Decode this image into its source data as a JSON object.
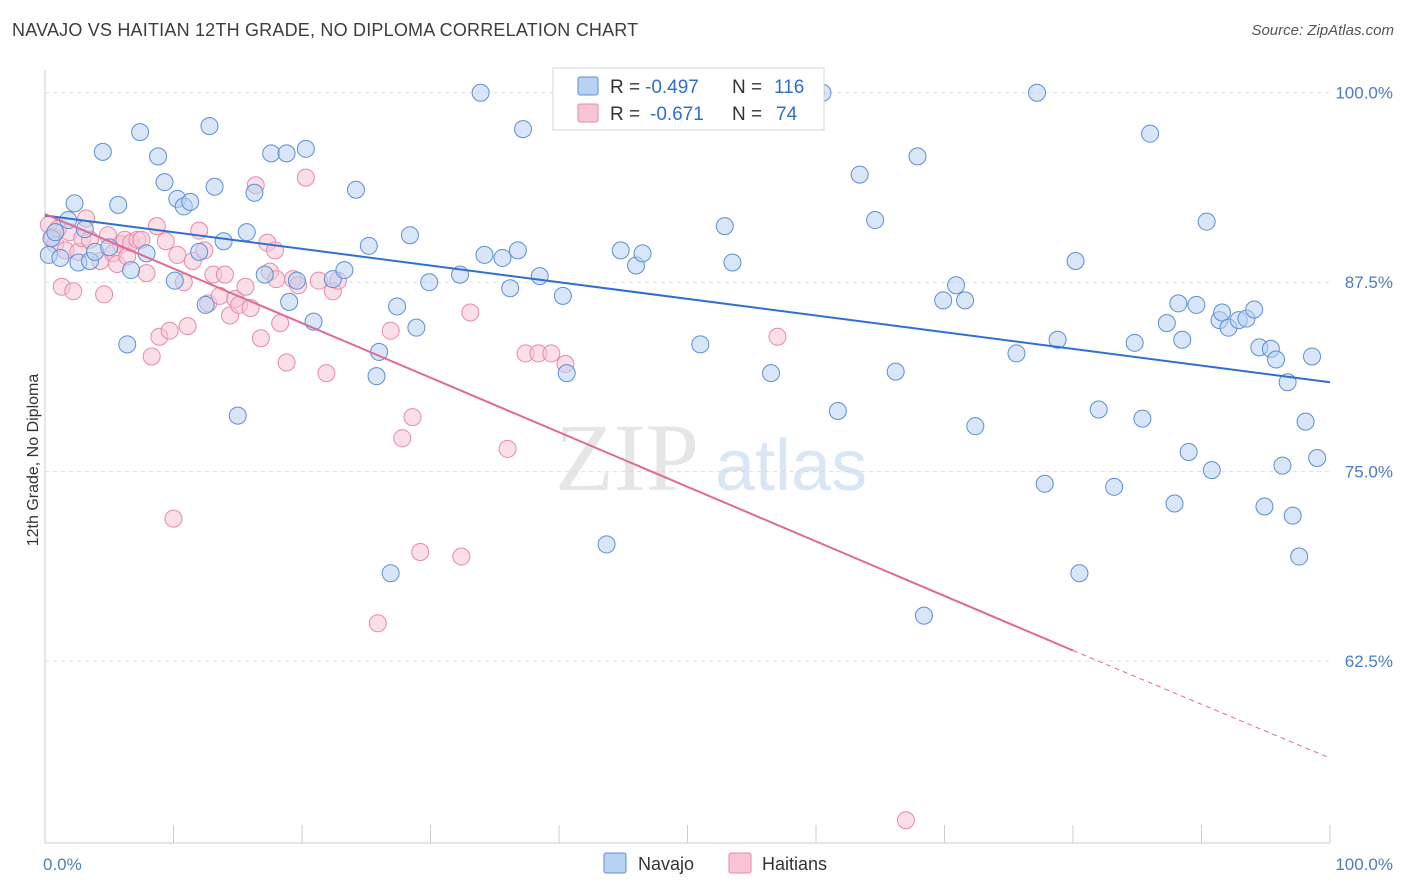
{
  "title": "NAVAJO VS HAITIAN 12TH GRADE, NO DIPLOMA CORRELATION CHART",
  "source": "Source: ZipAtlas.com",
  "watermark": {
    "zip": "ZIP",
    "atlas": "atlas"
  },
  "legend": {
    "navajo": {
      "r_label": "R =",
      "r_value": "-0.497",
      "n_label": "N =",
      "n_value": "116"
    },
    "haitian": {
      "r_label": "R =",
      "r_value": "-0.671",
      "n_label": "N =",
      "n_value": "74"
    }
  },
  "bottom_legend": {
    "navajo": "Navajo",
    "haitian": "Haitians"
  },
  "colors": {
    "navajo_fill": "#b8d2f2",
    "navajo_stroke": "#5b8fd6",
    "navajo_line": "#2f6fd0",
    "haitian_fill": "#f7c5d6",
    "haitian_stroke": "#e889a8",
    "haitian_line": "#e06a92",
    "tick_label": "#4a7cc7",
    "grid": "#dddddd"
  },
  "chart_data": {
    "type": "scatter",
    "ylabel": "12th Grade, No Diploma",
    "x_tick_labels": [
      "0.0%",
      "100.0%"
    ],
    "y_ticks": [
      {
        "value": 100.0,
        "label": "100.0%"
      },
      {
        "value": 87.5,
        "label": "87.5%"
      },
      {
        "value": 75.0,
        "label": "75.0%"
      },
      {
        "value": 62.5,
        "label": "62.5%"
      }
    ],
    "xlim": [
      0,
      100
    ],
    "ylim": [
      50.5,
      101.5
    ],
    "series": [
      {
        "name": "Navajo",
        "trend": {
          "x": [
            0,
            100
          ],
          "y": [
            91.9,
            80.9
          ]
        },
        "points": [
          [
            0.3,
            89.3
          ],
          [
            0.5,
            90.4
          ],
          [
            0.8,
            90.8
          ],
          [
            1.2,
            89.1
          ],
          [
            1.8,
            91.6
          ],
          [
            2.3,
            92.7
          ],
          [
            2.6,
            88.8
          ],
          [
            3.1,
            91.0
          ],
          [
            3.5,
            88.9
          ],
          [
            3.9,
            89.5
          ],
          [
            4.5,
            96.1
          ],
          [
            5.0,
            89.8
          ],
          [
            5.7,
            92.6
          ],
          [
            6.4,
            83.4
          ],
          [
            6.7,
            88.3
          ],
          [
            7.4,
            97.4
          ],
          [
            7.9,
            89.4
          ],
          [
            8.8,
            95.8
          ],
          [
            9.3,
            94.1
          ],
          [
            10.1,
            87.6
          ],
          [
            10.3,
            93.0
          ],
          [
            10.8,
            92.5
          ],
          [
            11.3,
            92.8
          ],
          [
            12.0,
            89.5
          ],
          [
            12.5,
            86.0
          ],
          [
            12.8,
            97.8
          ],
          [
            13.2,
            93.8
          ],
          [
            13.9,
            90.2
          ],
          [
            15.0,
            78.7
          ],
          [
            15.7,
            90.8
          ],
          [
            16.3,
            93.4
          ],
          [
            17.1,
            88.0
          ],
          [
            17.6,
            96.0
          ],
          [
            18.8,
            96.0
          ],
          [
            19.0,
            86.2
          ],
          [
            19.6,
            87.6
          ],
          [
            20.3,
            96.3
          ],
          [
            20.9,
            84.9
          ],
          [
            22.4,
            87.7
          ],
          [
            23.3,
            88.3
          ],
          [
            24.2,
            93.6
          ],
          [
            25.2,
            89.9
          ],
          [
            25.8,
            81.3
          ],
          [
            26.0,
            82.9
          ],
          [
            26.9,
            68.3
          ],
          [
            27.4,
            85.9
          ],
          [
            28.4,
            90.6
          ],
          [
            28.9,
            84.5
          ],
          [
            29.9,
            87.5
          ],
          [
            32.3,
            88.0
          ],
          [
            33.9,
            100.0
          ],
          [
            34.2,
            89.3
          ],
          [
            35.6,
            89.1
          ],
          [
            36.2,
            87.1
          ],
          [
            36.8,
            89.6
          ],
          [
            37.2,
            97.6
          ],
          [
            38.5,
            87.9
          ],
          [
            40.3,
            86.6
          ],
          [
            40.6,
            81.5
          ],
          [
            43.7,
            70.2
          ],
          [
            44.8,
            89.6
          ],
          [
            46.0,
            88.6
          ],
          [
            46.5,
            89.4
          ],
          [
            51.0,
            83.4
          ],
          [
            52.4,
            100.0
          ],
          [
            52.9,
            91.2
          ],
          [
            53.5,
            88.8
          ],
          [
            56.5,
            81.5
          ],
          [
            60.0,
            100.0
          ],
          [
            60.5,
            100.0
          ],
          [
            61.7,
            79.0
          ],
          [
            63.4,
            94.6
          ],
          [
            64.6,
            91.6
          ],
          [
            66.2,
            81.6
          ],
          [
            67.9,
            95.8
          ],
          [
            68.4,
            65.5
          ],
          [
            69.9,
            86.3
          ],
          [
            70.9,
            87.3
          ],
          [
            71.6,
            86.3
          ],
          [
            72.4,
            78.0
          ],
          [
            75.6,
            82.8
          ],
          [
            77.2,
            100.0
          ],
          [
            77.8,
            74.2
          ],
          [
            78.8,
            83.7
          ],
          [
            80.2,
            88.9
          ],
          [
            80.5,
            68.3
          ],
          [
            82.0,
            79.1
          ],
          [
            83.2,
            74.0
          ],
          [
            84.8,
            83.5
          ],
          [
            85.4,
            78.5
          ],
          [
            86.0,
            97.3
          ],
          [
            87.3,
            84.8
          ],
          [
            87.9,
            72.9
          ],
          [
            88.2,
            86.1
          ],
          [
            88.5,
            83.7
          ],
          [
            89.0,
            76.3
          ],
          [
            89.6,
            86.0
          ],
          [
            90.4,
            91.5
          ],
          [
            90.8,
            75.1
          ],
          [
            91.4,
            85.0
          ],
          [
            91.6,
            85.5
          ],
          [
            92.1,
            84.5
          ],
          [
            92.9,
            85.0
          ],
          [
            93.5,
            85.1
          ],
          [
            94.1,
            85.7
          ],
          [
            94.5,
            83.2
          ],
          [
            94.9,
            72.7
          ],
          [
            95.4,
            83.1
          ],
          [
            95.8,
            82.4
          ],
          [
            96.3,
            75.4
          ],
          [
            96.7,
            80.9
          ],
          [
            97.1,
            72.1
          ],
          [
            97.6,
            69.4
          ],
          [
            98.1,
            78.3
          ],
          [
            98.6,
            82.6
          ],
          [
            99.0,
            75.9
          ]
        ]
      },
      {
        "name": "Haitians",
        "trend": {
          "x": [
            0,
            80.0
          ],
          "y": [
            92.0,
            63.2
          ]
        },
        "trend_dashed": {
          "x": [
            80.0,
            100
          ],
          "y": [
            63.2,
            56.1
          ]
        },
        "points": [
          [
            0.3,
            91.3
          ],
          [
            0.6,
            90.5
          ],
          [
            0.8,
            90.0
          ],
          [
            1.0,
            91.0
          ],
          [
            1.3,
            87.2
          ],
          [
            1.6,
            89.6
          ],
          [
            1.9,
            90.8
          ],
          [
            2.2,
            86.9
          ],
          [
            2.6,
            89.5
          ],
          [
            2.9,
            90.4
          ],
          [
            3.2,
            91.7
          ],
          [
            3.5,
            90.3
          ],
          [
            4.3,
            88.9
          ],
          [
            4.6,
            86.7
          ],
          [
            4.9,
            90.6
          ],
          [
            5.3,
            89.4
          ],
          [
            5.6,
            88.7
          ],
          [
            5.9,
            90.0
          ],
          [
            6.2,
            90.3
          ],
          [
            6.4,
            89.2
          ],
          [
            6.7,
            90.1
          ],
          [
            7.2,
            90.3
          ],
          [
            7.5,
            90.3
          ],
          [
            7.9,
            88.1
          ],
          [
            8.3,
            82.6
          ],
          [
            8.7,
            91.2
          ],
          [
            8.9,
            83.9
          ],
          [
            9.4,
            90.2
          ],
          [
            9.7,
            84.3
          ],
          [
            10.0,
            71.9
          ],
          [
            10.3,
            89.3
          ],
          [
            10.8,
            87.5
          ],
          [
            11.1,
            84.6
          ],
          [
            11.5,
            88.9
          ],
          [
            12.0,
            90.9
          ],
          [
            12.4,
            89.6
          ],
          [
            12.7,
            86.1
          ],
          [
            13.1,
            88.0
          ],
          [
            13.6,
            86.6
          ],
          [
            14.0,
            88.0
          ],
          [
            14.4,
            85.3
          ],
          [
            14.8,
            86.4
          ],
          [
            15.1,
            86.0
          ],
          [
            15.6,
            87.2
          ],
          [
            16.0,
            85.8
          ],
          [
            16.4,
            93.9
          ],
          [
            16.8,
            83.8
          ],
          [
            17.3,
            90.1
          ],
          [
            17.5,
            88.2
          ],
          [
            17.9,
            89.6
          ],
          [
            18.3,
            84.8
          ],
          [
            18.8,
            82.2
          ],
          [
            19.3,
            87.7
          ],
          [
            19.7,
            87.3
          ],
          [
            20.3,
            94.4
          ],
          [
            21.3,
            87.6
          ],
          [
            21.9,
            81.5
          ],
          [
            22.4,
            86.9
          ],
          [
            22.8,
            87.6
          ],
          [
            25.9,
            65.0
          ],
          [
            26.9,
            84.3
          ],
          [
            27.8,
            77.2
          ],
          [
            28.6,
            78.6
          ],
          [
            29.2,
            69.7
          ],
          [
            32.4,
            69.4
          ],
          [
            33.1,
            85.5
          ],
          [
            36.0,
            76.5
          ],
          [
            37.4,
            82.8
          ],
          [
            38.4,
            82.8
          ],
          [
            39.4,
            82.8
          ],
          [
            40.5,
            82.1
          ],
          [
            57.0,
            83.9
          ],
          [
            67.0,
            52.0
          ],
          [
            18.0,
            87.7
          ]
        ]
      }
    ]
  }
}
